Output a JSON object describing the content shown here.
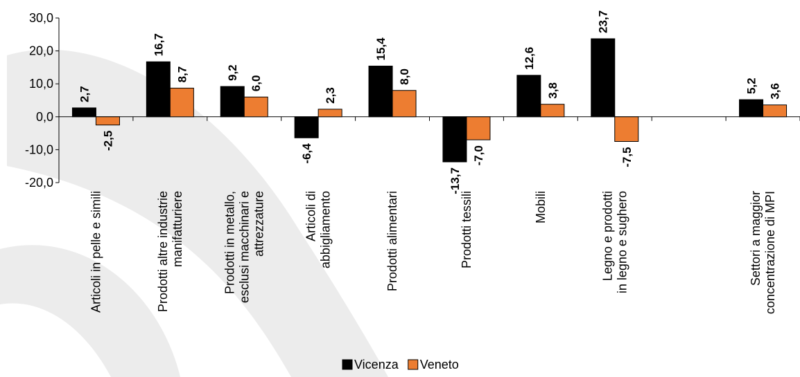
{
  "chart_data": {
    "type": "bar",
    "categories": [
      [
        "Articoli in pelle e simili"
      ],
      [
        "Prodotti altre industrie",
        "manifatturiere"
      ],
      [
        "Prodotti in metallo,",
        "esclusi macchinari e",
        "attrezzature"
      ],
      [
        "Articoli di",
        "abbigliamento"
      ],
      [
        "Prodotti alimentari"
      ],
      [
        "Prodotti tessili"
      ],
      [
        "Mobili"
      ],
      [
        "Legno e prodotti",
        "in legno e sughero"
      ],
      [
        ""
      ],
      [
        "Settori a maggior",
        "concentrazione di MPI"
      ]
    ],
    "series": [
      {
        "name": "Vicenza",
        "color": "#000000",
        "values": [
          2.7,
          16.7,
          9.2,
          -6.4,
          15.4,
          -13.7,
          12.6,
          23.7,
          null,
          5.2
        ],
        "labels": [
          "2,7",
          "16,7",
          "9,2",
          "-6,4",
          "15,4",
          "-13,7",
          "12,6",
          "23,7",
          "",
          "5,2"
        ]
      },
      {
        "name": "Veneto",
        "color": "#ED7D31",
        "values": [
          -2.5,
          8.7,
          6.0,
          2.3,
          8.0,
          -7.0,
          3.8,
          -7.5,
          null,
          3.6
        ],
        "labels": [
          "-2,5",
          "8,7",
          "6,0",
          "2,3",
          "8,0",
          "-7,0",
          "3,8",
          "-7,5",
          "",
          "3,6"
        ]
      }
    ],
    "ylim": [
      -20,
      30
    ],
    "yticks": [
      30,
      20,
      10,
      0,
      -10,
      -20
    ],
    "ytick_labels": [
      "30,0",
      "20,0",
      "10,0",
      "0,0",
      "-10,0",
      "-20,0"
    ],
    "legend_position": "bottom-center",
    "title": "",
    "xlabel": "",
    "ylabel": ""
  }
}
